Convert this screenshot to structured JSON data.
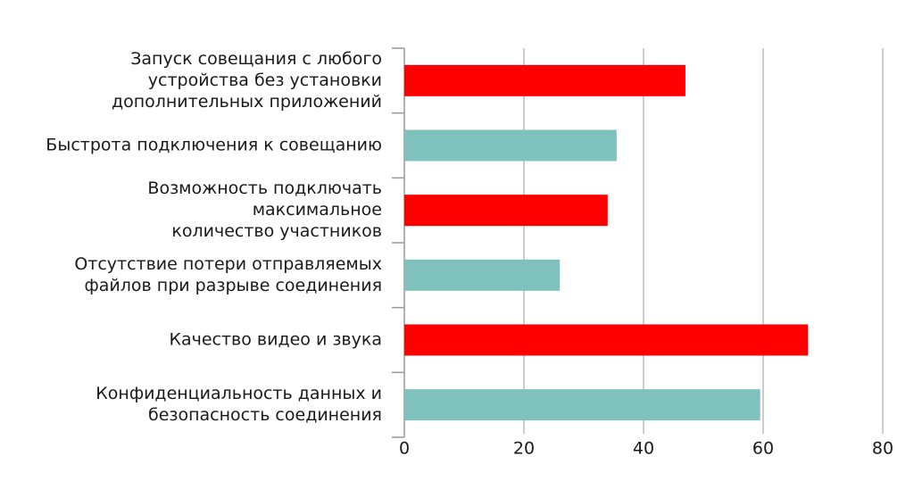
{
  "chart_data": {
    "type": "bar",
    "orientation": "horizontal",
    "categories": [
      [
        "Запуск совещания с любого",
        "устройства без установки",
        "дополнительных приложений"
      ],
      [
        "Быстрота подключения к совещанию"
      ],
      [
        "Возможность подключать",
        "максимальное",
        "количество участников"
      ],
      [
        "Отсутствие потери отправляемых",
        "файлов при разрыве соединения"
      ],
      [
        "Качество видео и звука"
      ],
      [
        "Конфиденциальность данных и",
        "безопасность соединения"
      ]
    ],
    "values": [
      47,
      35.5,
      34,
      26,
      67.5,
      59.5
    ],
    "colors": [
      "#ff0000",
      "#7fc1bd",
      "#ff0000",
      "#7fc1bd",
      "#ff0000",
      "#7fc1bd"
    ],
    "xlim": [
      0,
      80
    ],
    "xticks": [
      0,
      20,
      40,
      60,
      80
    ],
    "grid": true
  }
}
